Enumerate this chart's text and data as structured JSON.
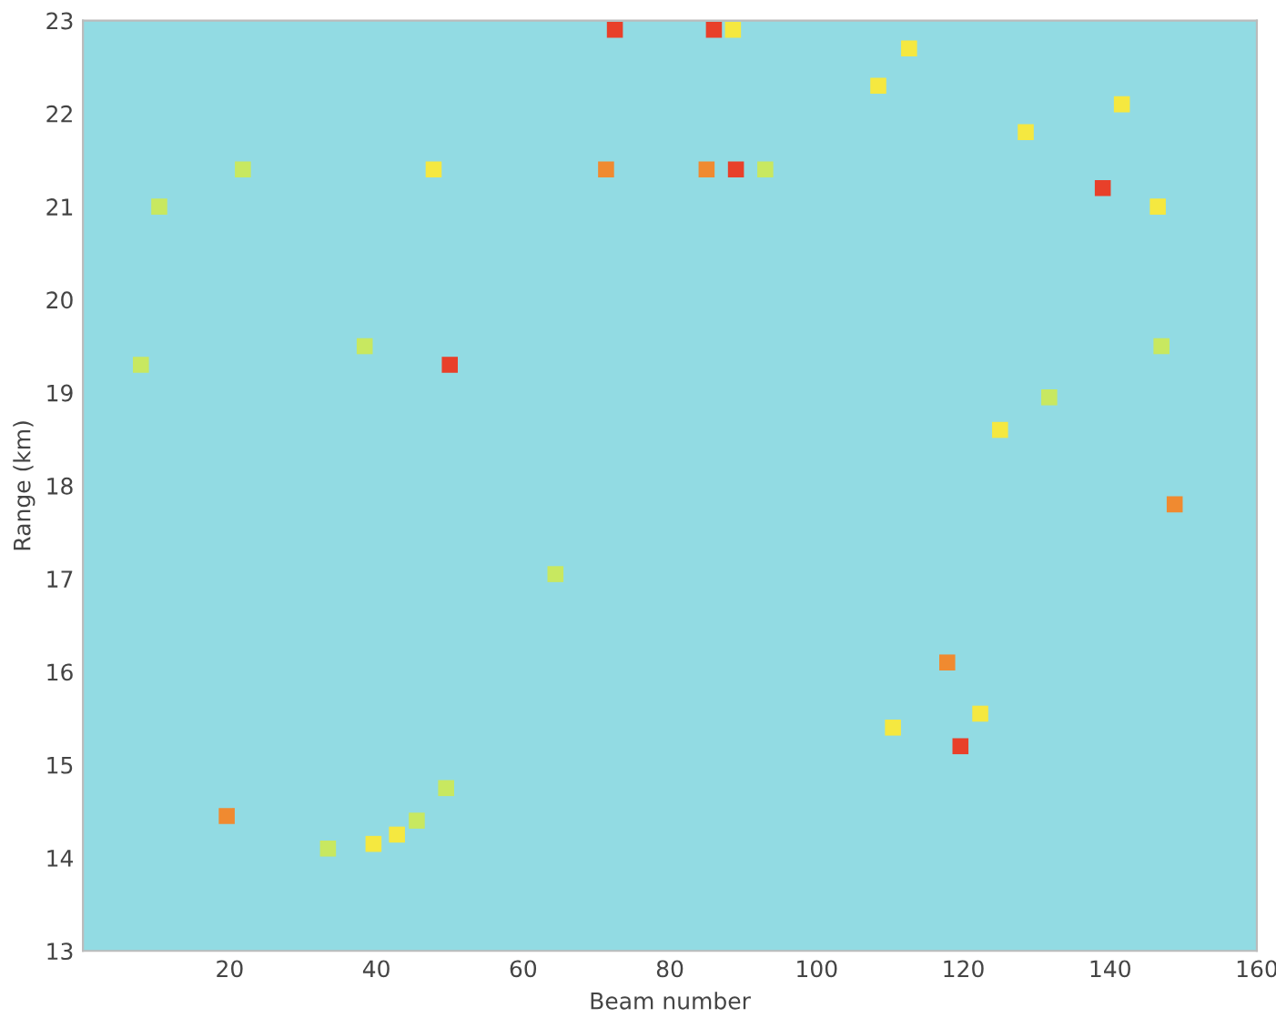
{
  "chart_data": {
    "type": "scatter",
    "xlabel": "Beam number",
    "ylabel": "Range (km)",
    "x": [
      72.5,
      86,
      88.6,
      112.6,
      108.4,
      141.6,
      128.5,
      71.3,
      85,
      89,
      93,
      47.8,
      21.8,
      10.4,
      139,
      146.5,
      50,
      7.9,
      38.4,
      147,
      131.7,
      125,
      148.8,
      64.4,
      117.8,
      122.3,
      110.4,
      119.6,
      19.6,
      39.6,
      42.8,
      33.4,
      45.5,
      49.5
    ],
    "values": [
      22.9,
      22.9,
      22.9,
      22.7,
      22.3,
      22.1,
      21.8,
      21.4,
      21.4,
      21.4,
      21.4,
      21.4,
      21.4,
      21.0,
      21.2,
      21.0,
      19.3,
      19.3,
      19.5,
      19.5,
      18.95,
      18.6,
      17.8,
      17.05,
      16.1,
      15.55,
      15.4,
      15.2,
      14.45,
      14.15,
      14.25,
      14.1,
      14.4,
      14.75
    ],
    "colors": [
      "#e8402a",
      "#e8402a",
      "#f5e840",
      "#f5e840",
      "#f5e840",
      "#f5e840",
      "#f5e840",
      "#f08a30",
      "#f08a30",
      "#e8402a",
      "#c8e860",
      "#f5e840",
      "#c8e860",
      "#c8e860",
      "#e8402a",
      "#f5e840",
      "#e8402a",
      "#c8e860",
      "#c8e860",
      "#c8e860",
      "#c8e860",
      "#f5e840",
      "#f08a30",
      "#c8e860",
      "#f08a30",
      "#f5e840",
      "#f5e840",
      "#e8402a",
      "#f08a30",
      "#f5e840",
      "#f5e840",
      "#c8e860",
      "#c8e860",
      "#c8e860"
    ],
    "marker": "square",
    "grid": false,
    "xlim": [
      0,
      160
    ],
    "xticks": [
      20,
      40,
      60,
      80,
      100,
      120,
      140,
      160
    ],
    "ylim": [
      13,
      23
    ],
    "yticks": [
      13,
      14,
      15,
      16,
      17,
      18,
      19,
      20,
      21,
      22,
      23
    ]
  }
}
